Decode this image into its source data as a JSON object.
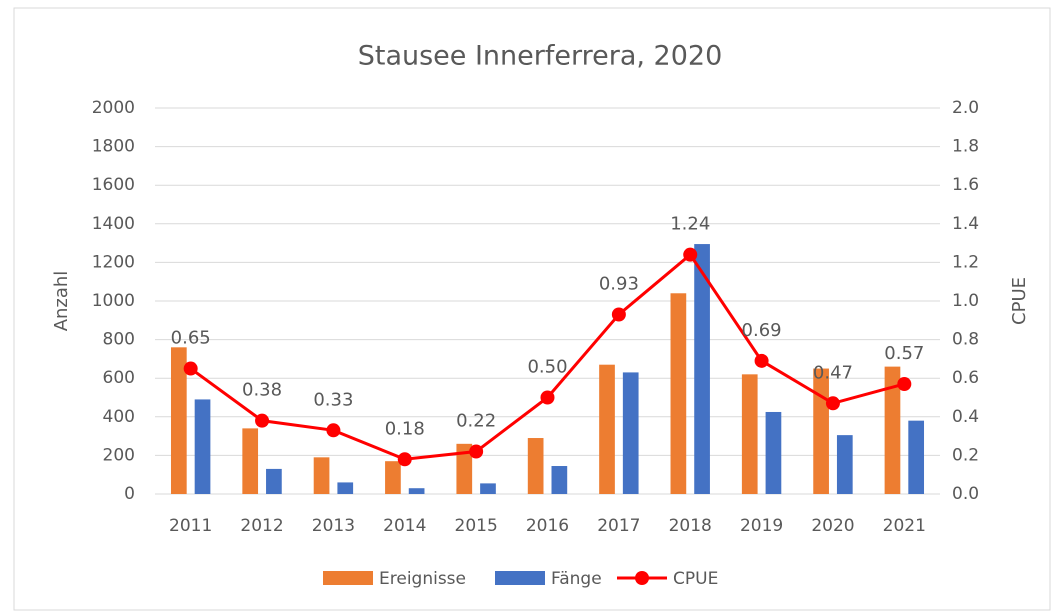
{
  "chart_data": {
    "type": "bar",
    "title": "Stausee Innerferrera, 2020",
    "y_label": "Anzahl",
    "y2_label": "CPUE",
    "categories": [
      "2011",
      "2012",
      "2013",
      "2014",
      "2015",
      "2016",
      "2017",
      "2018",
      "2019",
      "2020",
      "2021"
    ],
    "series": [
      {
        "name": "Ereignisse",
        "type": "bar",
        "color": "#ed7d31",
        "values": [
          760,
          340,
          190,
          170,
          260,
          290,
          670,
          1040,
          620,
          650,
          660
        ]
      },
      {
        "name": "Fänge",
        "type": "bar",
        "color": "#4472c4",
        "values": [
          490,
          130,
          60,
          30,
          55,
          145,
          630,
          1295,
          425,
          305,
          380
        ]
      },
      {
        "name": "CPUE",
        "type": "line",
        "axis": "y2",
        "color": "#ff0000",
        "values": [
          0.65,
          0.38,
          0.33,
          0.18,
          0.22,
          0.5,
          0.93,
          1.24,
          0.69,
          0.47,
          0.57
        ],
        "value_labels": [
          "0.65",
          "0.38",
          "0.33",
          "0.18",
          "0.22",
          "0.50",
          "0.93",
          "1.24",
          "0.69",
          "0.47",
          "0.57"
        ]
      }
    ],
    "ylim": [
      0,
      2000
    ],
    "yticks": [
      0,
      200,
      400,
      600,
      800,
      1000,
      1200,
      1400,
      1600,
      1800,
      2000
    ],
    "y2lim": [
      0,
      2
    ],
    "y2ticks": [
      {
        "value": 0,
        "label": "0.0"
      },
      {
        "value": 0.2,
        "label": "0.2"
      },
      {
        "value": 0.4,
        "label": "0.4"
      },
      {
        "value": 0.6,
        "label": "0.6"
      },
      {
        "value": 0.8,
        "label": "0.8"
      },
      {
        "value": 1,
        "label": "1.0"
      },
      {
        "value": 1.2,
        "label": "1.2"
      },
      {
        "value": 1.4,
        "label": "1.4"
      },
      {
        "value": 1.6,
        "label": "1.6"
      },
      {
        "value": 1.8,
        "label": "1.8"
      },
      {
        "value": 2,
        "label": "2.0"
      }
    ],
    "grid": true,
    "legend": "bottom"
  }
}
